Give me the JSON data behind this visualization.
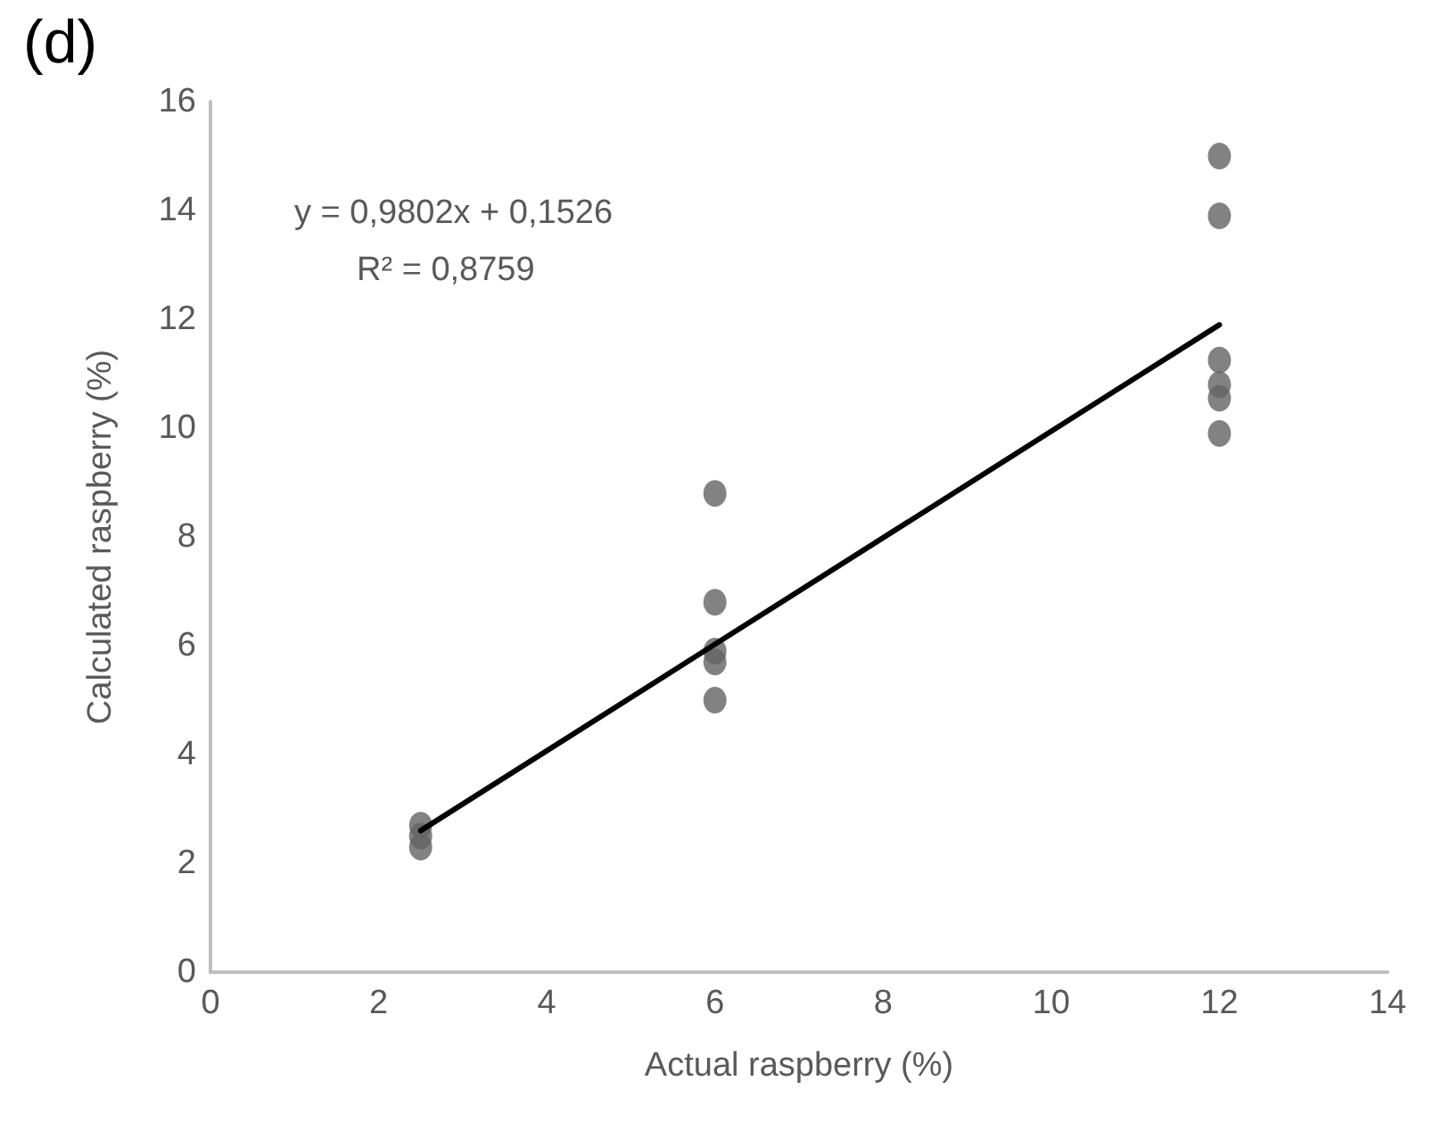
{
  "chart_data": {
    "type": "scatter",
    "title": "(d)",
    "xlabel": "Actual raspberry (%)",
    "ylabel": "Calculated raspberry (%)",
    "annotations": [
      "y = 0,9802x + 0,1526",
      "R² = 0,8759"
    ],
    "marker": "circle",
    "grid": false,
    "xlim": [
      0,
      14
    ],
    "xticks": [
      0,
      2,
      4,
      6,
      8,
      10,
      12,
      14
    ],
    "ylim": [
      0,
      16
    ],
    "yticks": [
      0,
      2,
      4,
      6,
      8,
      10,
      12,
      14,
      16
    ],
    "series": [
      {
        "color": "#636363",
        "x": [
          2.5,
          2.5,
          2.5,
          6,
          6,
          6,
          6,
          6,
          12,
          12,
          12,
          12,
          12,
          12
        ],
        "values": [
          2.7,
          2.5,
          2.3,
          8.8,
          6.8,
          5.9,
          5.7,
          5.0,
          15.0,
          13.9,
          11.25,
          10.8,
          10.55,
          9.9
        ]
      },
      {
        "type": "line",
        "color": "#000000",
        "x": [
          2.5,
          12
        ],
        "values": [
          2.6,
          11.9
        ],
        "marker": "none",
        "line_style": "solid"
      }
    ]
  }
}
